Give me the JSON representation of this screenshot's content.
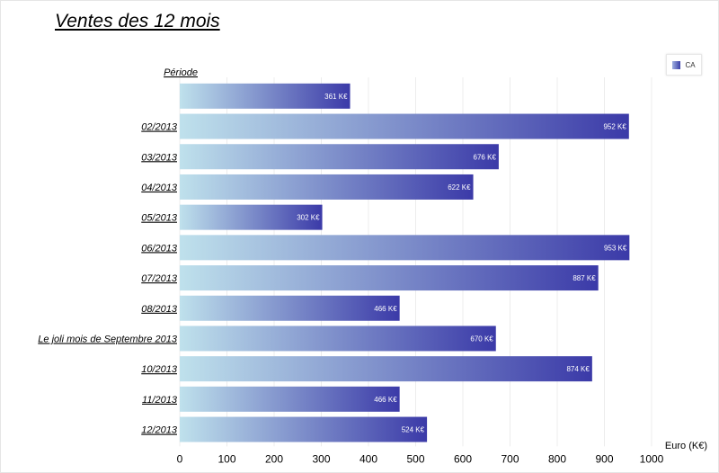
{
  "chart_data": {
    "type": "bar",
    "orientation": "horizontal",
    "title": "Ventes des 12 mois",
    "category_axis_title": "Période",
    "xlabel": "Euro (K€)",
    "xlim": [
      0,
      1000
    ],
    "xticks": [
      0,
      100,
      200,
      300,
      400,
      500,
      600,
      700,
      800,
      900,
      1000
    ],
    "grid": true,
    "legend_position": "top-right",
    "categories": [
      "",
      "02/2013",
      "03/2013",
      "04/2013",
      "05/2013",
      "06/2013",
      "07/2013",
      "08/2013",
      "Le joli mois de Septembre 2013",
      "10/2013",
      "11/2013",
      "12/2013"
    ],
    "series": [
      {
        "name": "CA",
        "values": [
          361,
          952,
          676,
          622,
          302,
          953,
          887,
          466,
          670,
          874,
          466,
          524
        ],
        "value_labels": [
          "361 K€",
          "952 K€",
          "676 K€",
          "622 K€",
          "302 K€",
          "953 K€",
          "887 K€",
          "466 K€",
          "670 K€",
          "874 K€",
          "466 K€",
          "524 K€"
        ]
      }
    ],
    "colors": {
      "bar_start": "#bfe1ec",
      "bar_end": "#3b3aa8",
      "grid": "#ececec"
    }
  }
}
